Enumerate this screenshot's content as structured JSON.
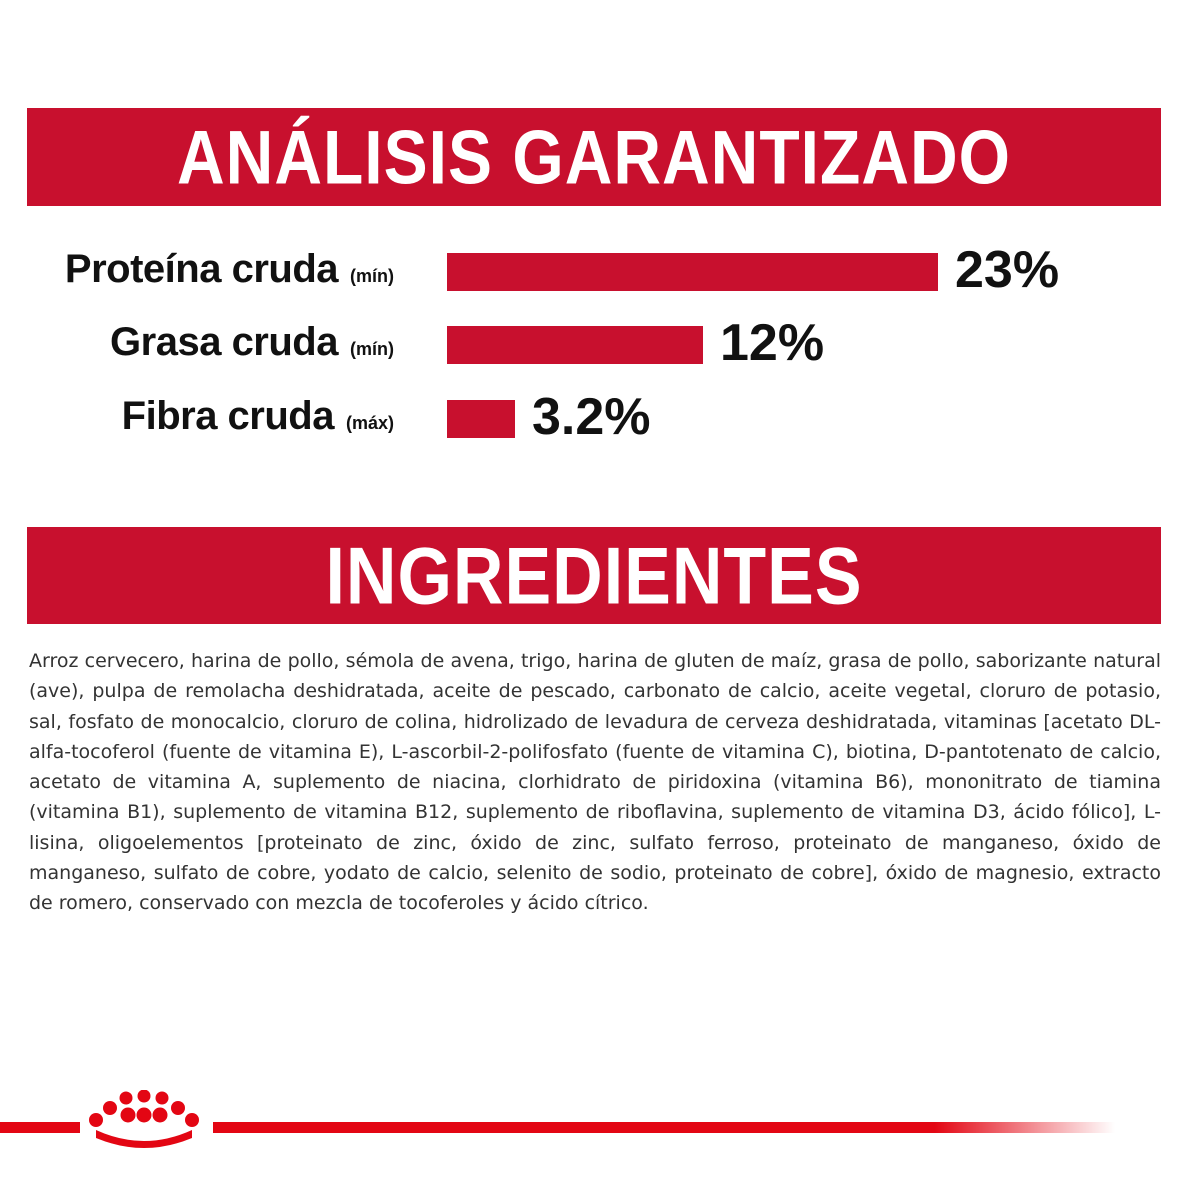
{
  "analysis_title": "ANÁLISIS GARANTIZADO",
  "ingredients_title": "INGREDIENTES",
  "colors": {
    "brand_red": "#c8102e",
    "bar_red": "#c8102e",
    "text": "#333333"
  },
  "chart_data": {
    "type": "bar",
    "orientation": "horizontal",
    "categories": [
      "Proteína cruda",
      "Grasa cruda",
      "Fibra cruda"
    ],
    "qualifiers": [
      "(mín)",
      "(mín)",
      "(máx)"
    ],
    "values": [
      23,
      12,
      3.2
    ],
    "value_labels": [
      "23%",
      "12%",
      "3.2%"
    ],
    "unit": "%",
    "title": "",
    "xlabel": "",
    "ylabel": "",
    "grid": false,
    "legend": "none"
  },
  "ingredients_text": "Arroz cervecero, harina de pollo, sémola de avena, trigo, harina de gluten de maíz, grasa de pollo, saborizante natural (ave), pulpa de remolacha deshidratada, aceite de pescado, carbonato de calcio, aceite vegetal, cloruro de potasio, sal, fosfato de monocalcio, cloruro de colina, hidrolizado de levadura de cerveza deshidratada, vitaminas [acetato DL-alfa-tocoferol (fuente de vitamina E), L-ascorbil-2-polifosfato (fuente de vitamina C), biotina, D-pantotenato de calcio, acetato de vitamina A, suplemento de niacina, clorhidrato de piridoxina (vitamina B6), mononitrato de tiamina (vitamina B1), suplemento de vitamina B12, suplemento de riboflavina, suplemento de vitamina D3, ácido fólico], L-lisina, oligoelementos [proteinato de zinc, óxido de zinc, sulfato ferroso, proteinato de manganeso, óxido de manganeso, sulfato de cobre, yodato de calcio, selenito de sodio, proteinato de cobre], óxido de magnesio, extracto de romero, conservado con mezcla de tocoferoles y ácido cítrico.",
  "logo": {
    "icon": "royal-canin-crown-icon"
  }
}
